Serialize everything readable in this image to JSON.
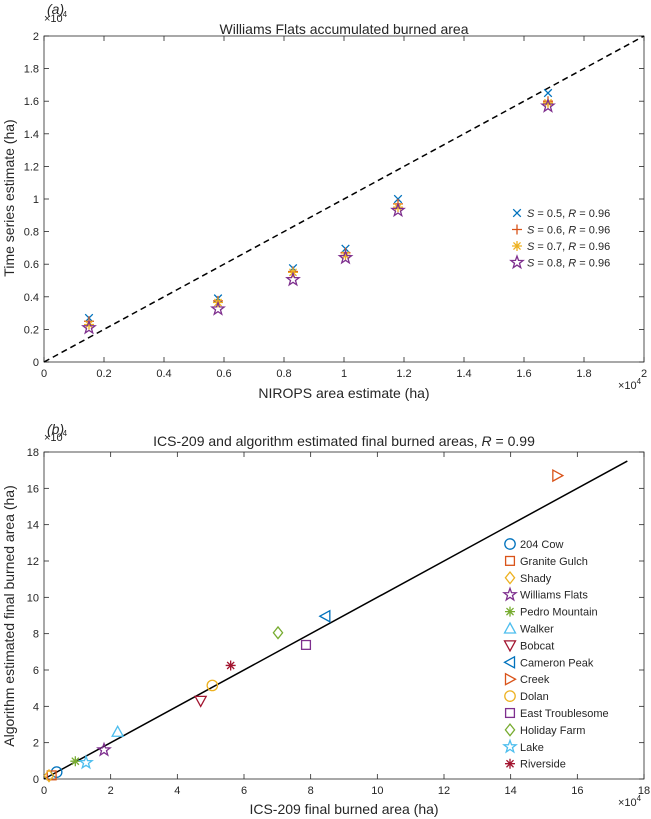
{
  "chart_data": [
    {
      "type": "scatter",
      "panel_label": "(a)",
      "title": "Williams Flats accumulated burned area",
      "xlabel": "NIROPS area estimate (ha)",
      "ylabel": "Time series estimate (ha)",
      "x_exponent": "×10",
      "x_exponent_power": "4",
      "y_exponent": "×10",
      "y_exponent_power": "4",
      "xlim": [
        0,
        20000
      ],
      "ylim": [
        0,
        20000
      ],
      "xticks": [
        0,
        2000,
        4000,
        6000,
        8000,
        10000,
        12000,
        14000,
        16000,
        18000,
        20000
      ],
      "xtick_labels": [
        "0",
        "0.2",
        "0.4",
        "0.6",
        "0.8",
        "1",
        "1.2",
        "1.4",
        "1.6",
        "1.8",
        "2"
      ],
      "yticks": [
        0,
        2000,
        4000,
        6000,
        8000,
        10000,
        12000,
        14000,
        16000,
        18000,
        20000
      ],
      "ytick_labels": [
        "0",
        "0.2",
        "0.4",
        "0.6",
        "0.8",
        "1",
        "1.2",
        "1.4",
        "1.6",
        "1.8",
        "2"
      ],
      "grid": false,
      "legend_position": "right",
      "reference_line": {
        "style": "dashed",
        "color": "#000000",
        "points": [
          [
            0,
            0
          ],
          [
            20000,
            20000
          ]
        ]
      },
      "series": [
        {
          "name": "S = 0.5, R = 0.96",
          "label_s": "S",
          "label_mid": " = 0.5, ",
          "label_r": "R",
          "label_end": " = 0.96",
          "marker": "x",
          "color": "#0072BD",
          "x": [
            1500,
            5800,
            8300,
            10050,
            11800,
            16800
          ],
          "y": [
            2700,
            3900,
            5750,
            6950,
            10000,
            16500
          ]
        },
        {
          "name": "S = 0.6, R = 0.96",
          "label_s": "S",
          "label_mid": " = 0.6, ",
          "label_r": "R",
          "label_end": " = 0.96",
          "marker": "plus",
          "color": "#D95319",
          "x": [
            1500,
            5800,
            8300,
            10050,
            11800,
            16800
          ],
          "y": [
            2500,
            3750,
            5550,
            6700,
            9700,
            16000
          ]
        },
        {
          "name": "S = 0.7, R = 0.96",
          "label_s": "S",
          "label_mid": " = 0.7, ",
          "label_r": "R",
          "label_end": " = 0.96",
          "marker": "asterisk",
          "color": "#EDB120",
          "x": [
            1500,
            5800,
            8300,
            10050,
            11800,
            16800
          ],
          "y": [
            2300,
            3650,
            5500,
            6550,
            9500,
            15900
          ]
        },
        {
          "name": "S = 0.8, R = 0.96",
          "label_s": "S",
          "label_mid": " = 0.8, ",
          "label_r": "R",
          "label_end": " = 0.96",
          "marker": "pentagram",
          "color": "#7E2F8E",
          "x": [
            1500,
            5800,
            8300,
            10050,
            11800,
            16800
          ],
          "y": [
            2100,
            3250,
            5050,
            6400,
            9300,
            15700
          ]
        }
      ]
    },
    {
      "type": "scatter",
      "panel_label": "(b)",
      "title": "ICS-209 and algorithm estimated final burned areas, ",
      "title_r": "R",
      "title_end": " = 0.99",
      "xlabel": "ICS-209 final burned area (ha)",
      "ylabel": "Algorithm estimated final burned area (ha)",
      "x_exponent": "×10",
      "x_exponent_power": "4",
      "y_exponent": "×10",
      "y_exponent_power": "4",
      "xlim": [
        0,
        180000
      ],
      "ylim": [
        0,
        180000
      ],
      "xticks": [
        0,
        20000,
        40000,
        60000,
        80000,
        100000,
        120000,
        140000,
        160000,
        180000
      ],
      "xtick_labels": [
        "0",
        "2",
        "4",
        "6",
        "8",
        "10",
        "12",
        "14",
        "16",
        "18"
      ],
      "yticks": [
        0,
        20000,
        40000,
        60000,
        80000,
        100000,
        120000,
        140000,
        160000,
        180000
      ],
      "ytick_labels": [
        "0",
        "2",
        "4",
        "6",
        "8",
        "10",
        "12",
        "14",
        "16",
        "18"
      ],
      "grid": false,
      "legend_position": "right",
      "reference_line": {
        "style": "solid",
        "color": "#000000",
        "points": [
          [
            0,
            0
          ],
          [
            175000,
            175000
          ]
        ]
      },
      "series": [
        {
          "name": "204 Cow",
          "marker": "circle",
          "color": "#0072BD",
          "x": [
            3800
          ],
          "y": [
            3800
          ]
        },
        {
          "name": "Granite Gulch",
          "marker": "square",
          "color": "#D95319",
          "x": [
            2300
          ],
          "y": [
            2000
          ]
        },
        {
          "name": "Shady",
          "marker": "diamond",
          "color": "#EDB120",
          "x": [
            1500
          ],
          "y": [
            1800
          ]
        },
        {
          "name": "Williams Flats",
          "marker": "pentagram",
          "color": "#7E2F8E",
          "x": [
            18000
          ],
          "y": [
            16000
          ]
        },
        {
          "name": "Pedro Mountain",
          "marker": "asterisk",
          "color": "#77AC30",
          "x": [
            9400
          ],
          "y": [
            9800
          ]
        },
        {
          "name": "Walker",
          "marker": "triangle-up",
          "color": "#4DBEEE",
          "x": [
            22100
          ],
          "y": [
            26000
          ]
        },
        {
          "name": "Bobcat",
          "marker": "triangle-down",
          "color": "#A2142F",
          "x": [
            47000
          ],
          "y": [
            43000
          ]
        },
        {
          "name": "Cameron Peak",
          "marker": "triangle-left",
          "color": "#0072BD",
          "x": [
            84400
          ],
          "y": [
            89600
          ]
        },
        {
          "name": "Creek",
          "marker": "triangle-right",
          "color": "#D95319",
          "x": [
            154000
          ],
          "y": [
            167000
          ]
        },
        {
          "name": "Dolan",
          "marker": "circle",
          "color": "#EDB120",
          "x": [
            50500
          ],
          "y": [
            51500
          ]
        },
        {
          "name": "East Troublesome",
          "marker": "square",
          "color": "#7E2F8E",
          "x": [
            78600
          ],
          "y": [
            73800
          ]
        },
        {
          "name": "Holiday Farm",
          "marker": "diamond",
          "color": "#77AC30",
          "x": [
            70200
          ],
          "y": [
            80500
          ]
        },
        {
          "name": "Lake",
          "marker": "pentagram",
          "color": "#4DBEEE",
          "x": [
            12600
          ],
          "y": [
            9000
          ]
        },
        {
          "name": "Riverside",
          "marker": "asterisk",
          "color": "#A2142F",
          "x": [
            56000
          ],
          "y": [
            62500
          ]
        }
      ]
    }
  ]
}
